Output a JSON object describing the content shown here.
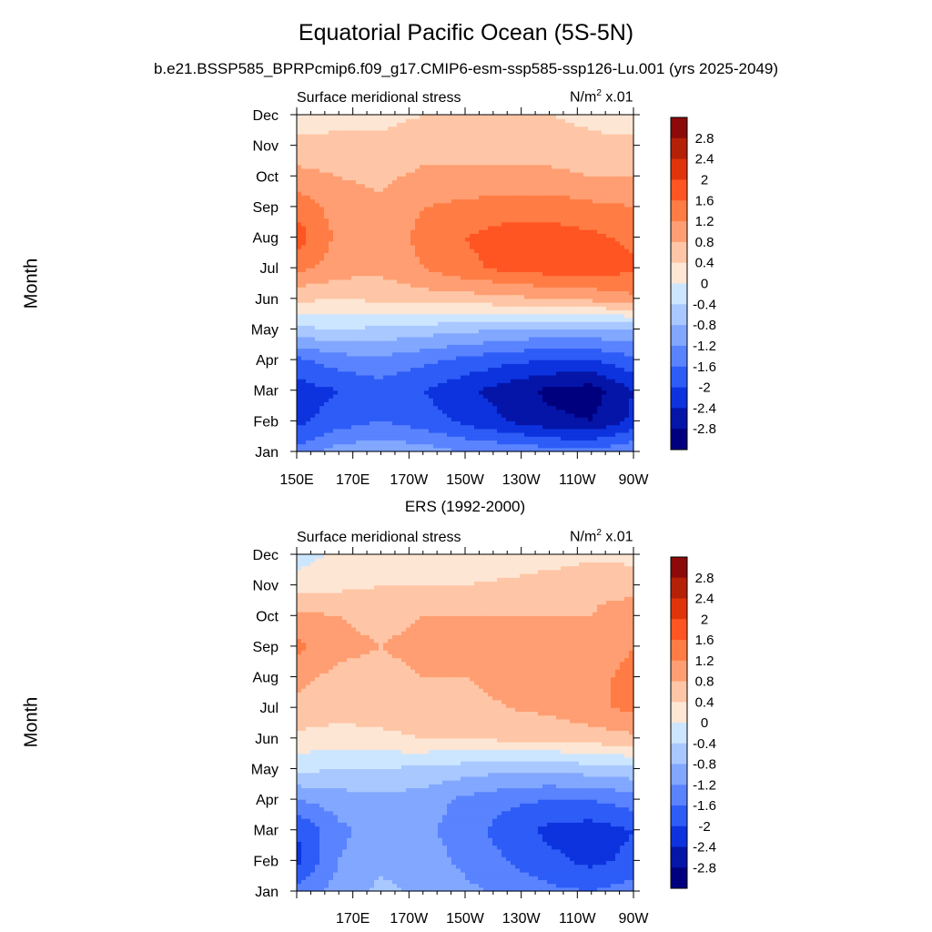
{
  "title": "Equatorial Pacific Ocean (5S-5N)",
  "subtitle": "b.e21.BSSP585_BPRPcmip6.f09_g17.CMIP6-esm-ssp585-ssp126-Lu.001 (yrs 2025-2049)",
  "middle_title": "ERS (1992-2000)",
  "panel_variable": "Surface meridional stress",
  "units_base": "N/m",
  "units_exp": "2",
  "units_suffix": " x.01",
  "ylabel": "Month",
  "months": [
    "Jan",
    "Feb",
    "Mar",
    "Apr",
    "May",
    "Jun",
    "Jul",
    "Aug",
    "Sep",
    "Oct",
    "Nov",
    "Dec"
  ],
  "colorbar_labels": [
    "2.8",
    "2.4",
    "2",
    "1.6",
    "1.2",
    "0.8",
    "0.4",
    "0",
    "-0.4",
    "-0.8",
    "-1.2",
    "-1.6",
    "-2",
    "-2.4",
    "-2.8"
  ],
  "colors": {
    "levels_top_to_bottom": [
      "#8c0a0a",
      "#b52107",
      "#e0340a",
      "#ff5522",
      "#ff7c44",
      "#ff9e72",
      "#fec6a6",
      "#fde6d4",
      "#cde6ff",
      "#a9c8ff",
      "#81a7ff",
      "#5a83ff",
      "#2d5cf7",
      "#0c33de",
      "#0415a8",
      "#00007e"
    ]
  },
  "chart_data": [
    {
      "type": "heatmap",
      "name": "model",
      "title": "Surface meridional stress",
      "units": "N/m2 x.01",
      "xlabel": "",
      "ylabel": "Month",
      "x_ticks": [
        "150E",
        "170E",
        "170W",
        "150W",
        "130W",
        "110W",
        "90W"
      ],
      "x_values_deg_east": [
        150,
        170,
        190,
        210,
        230,
        250,
        270
      ],
      "x_range_deg_east": [
        150,
        270
      ],
      "y_categories": [
        "Jan",
        "Feb",
        "Mar",
        "Apr",
        "May",
        "Jun",
        "Jul",
        "Aug",
        "Sep",
        "Oct",
        "Nov",
        "Dec"
      ],
      "contour_levels": [
        -2.8,
        -2.4,
        -2,
        -1.6,
        -1.2,
        -0.8,
        -0.4,
        0,
        0.4,
        0.8,
        1.2,
        1.6,
        2,
        2.4,
        2.8
      ],
      "grid": {
        "lon": [
          150,
          165,
          180,
          195,
          210,
          225,
          240,
          255,
          270
        ],
        "rows": [
          [
            -1.5,
            -1.0,
            -0.9,
            -1.0,
            -1.2,
            -1.3,
            -1.4,
            -1.5,
            -1.2
          ],
          [
            -2.1,
            -1.8,
            -1.6,
            -1.8,
            -2.1,
            -2.4,
            -2.7,
            -2.8,
            -2.3
          ],
          [
            -2.2,
            -2.0,
            -1.8,
            -2.0,
            -2.3,
            -2.6,
            -2.9,
            -3.0,
            -2.4
          ],
          [
            -1.7,
            -1.4,
            -1.3,
            -1.5,
            -1.7,
            -1.9,
            -2.0,
            -2.0,
            -1.7
          ],
          [
            -0.5,
            -0.4,
            -0.5,
            -0.6,
            -0.7,
            -0.8,
            -0.9,
            -0.9,
            -0.8
          ],
          [
            0.5,
            0.4,
            0.5,
            0.6,
            0.6,
            0.7,
            0.8,
            0.9,
            1.1
          ],
          [
            1.3,
            1.0,
            0.9,
            1.2,
            1.5,
            1.7,
            1.8,
            1.8,
            1.7
          ],
          [
            1.8,
            1.1,
            1.0,
            1.3,
            1.6,
            1.8,
            1.8,
            1.7,
            1.5
          ],
          [
            1.5,
            1.0,
            0.9,
            1.2,
            1.3,
            1.4,
            1.4,
            1.3,
            1.2
          ],
          [
            0.9,
            0.8,
            0.7,
            0.9,
            0.9,
            0.9,
            0.9,
            0.8,
            0.8
          ],
          [
            0.6,
            0.6,
            0.5,
            0.6,
            0.6,
            0.6,
            0.6,
            0.5,
            0.5
          ],
          [
            0.0,
            0.2,
            0.3,
            0.4,
            0.4,
            0.4,
            0.4,
            0.3,
            0.2
          ]
        ]
      }
    },
    {
      "type": "heatmap",
      "name": "ers",
      "title": "Surface meridional stress",
      "units": "N/m2 x.01",
      "xlabel": "",
      "ylabel": "Month",
      "x_ticks": [
        "170E",
        "170W",
        "150W",
        "130W",
        "110W",
        "90W"
      ],
      "x_values_deg_east": [
        170,
        190,
        210,
        230,
        250,
        270
      ],
      "x_range_deg_east": [
        150,
        270
      ],
      "y_categories": [
        "Jan",
        "Feb",
        "Mar",
        "Apr",
        "May",
        "Jun",
        "Jul",
        "Aug",
        "Sep",
        "Oct",
        "Nov",
        "Dec"
      ],
      "contour_levels": [
        -2.8,
        -2.4,
        -2,
        -1.6,
        -1.2,
        -0.8,
        -0.4,
        0,
        0.4,
        0.8,
        1.2,
        1.6,
        2,
        2.4,
        2.8
      ],
      "grid": {
        "lon": [
          150,
          165,
          180,
          195,
          210,
          225,
          240,
          255,
          270
        ],
        "rows": [
          [
            -1.5,
            -1.0,
            -0.7,
            -0.9,
            -1.1,
            -1.3,
            -1.5,
            -1.6,
            -1.4
          ],
          [
            -2.1,
            -1.2,
            -0.9,
            -1.0,
            -1.3,
            -1.6,
            -1.9,
            -2.1,
            -1.9
          ],
          [
            -2.0,
            -1.3,
            -1.0,
            -1.1,
            -1.4,
            -1.8,
            -2.1,
            -2.2,
            -2.0
          ],
          [
            -1.2,
            -1.0,
            -0.9,
            -1.0,
            -1.3,
            -1.5,
            -1.6,
            -1.6,
            -1.4
          ],
          [
            -0.3,
            -0.4,
            -0.4,
            -0.5,
            -0.6,
            -0.7,
            -0.7,
            -0.6,
            -0.5
          ],
          [
            0.3,
            0.2,
            0.3,
            0.4,
            0.4,
            0.5,
            0.5,
            0.6,
            0.7
          ],
          [
            0.7,
            0.6,
            0.6,
            0.7,
            0.7,
            0.8,
            0.9,
            1.1,
            1.3
          ],
          [
            0.9,
            0.7,
            0.7,
            0.8,
            0.8,
            0.9,
            0.9,
            1.1,
            1.3
          ],
          [
            1.3,
            0.9,
            0.8,
            0.9,
            0.9,
            0.9,
            0.9,
            1.0,
            1.2
          ],
          [
            0.9,
            0.8,
            0.7,
            0.8,
            0.8,
            0.8,
            0.8,
            0.8,
            1.1
          ],
          [
            0.2,
            0.3,
            0.4,
            0.4,
            0.4,
            0.5,
            0.6,
            0.7,
            0.6
          ],
          [
            -0.2,
            0.1,
            0.1,
            0.1,
            0.0,
            0.1,
            0.2,
            0.3,
            0.3
          ]
        ]
      }
    }
  ]
}
